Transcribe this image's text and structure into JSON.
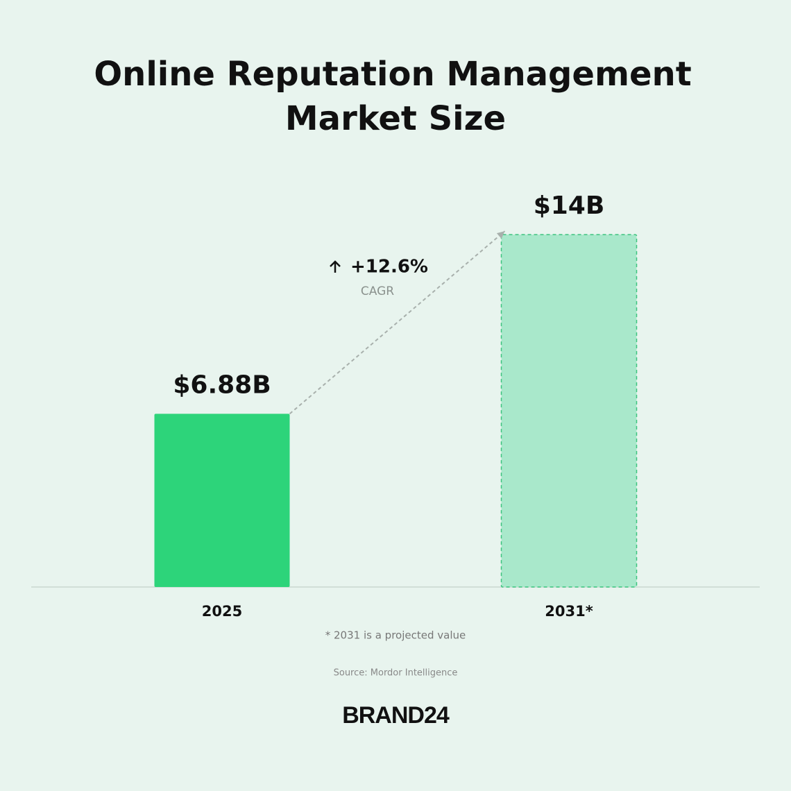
{
  "chart_data": {
    "type": "bar",
    "title": [
      "Online Reputation Management",
      "Market Size"
    ],
    "categories": [
      "2025",
      "2031*"
    ],
    "values": [
      6.88,
      14
    ],
    "value_labels": [
      "$6.88B",
      "$14B"
    ],
    "colors": [
      "#2dd47a",
      "#a9e8cb"
    ],
    "bar_styles": [
      "solid",
      "dashed"
    ],
    "annotation": {
      "change": "+12.6%",
      "label": "CAGR"
    },
    "footnote": "* 2031 is a projected value",
    "source": "Source: Mordor Intelligence",
    "brand": "BRAND24"
  }
}
